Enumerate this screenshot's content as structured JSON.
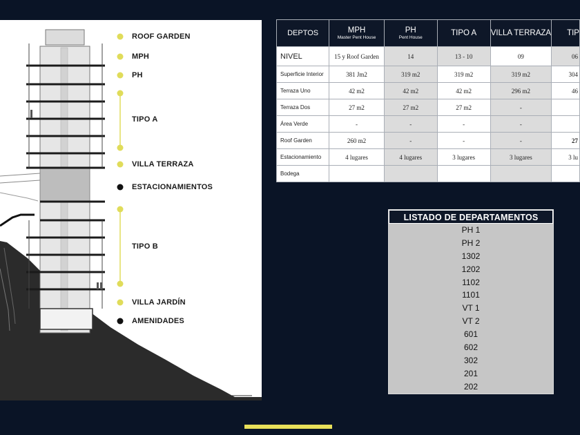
{
  "building_levels": [
    {
      "label": "ROOF GARDEN",
      "marker": "yellow"
    },
    {
      "label": "MPH",
      "marker": "yellow"
    },
    {
      "label": "PH",
      "marker": "yellow"
    },
    {
      "label": "TIPO A",
      "marker": "yellow-range"
    },
    {
      "label": "VILLA TERRAZA",
      "marker": "yellow"
    },
    {
      "label": "ESTACIONAMIENTOS",
      "marker": "black"
    },
    {
      "label": "TIPO B",
      "marker": "yellow-range"
    },
    {
      "label": "VILLA JARDÍN",
      "marker": "yellow"
    },
    {
      "label": "AMENIDADES",
      "marker": "black"
    }
  ],
  "colors": {
    "accent_yellow": "#e0dc5a",
    "background": "#0a1426",
    "header": "#0e1728",
    "marker_black": "#111111"
  },
  "specs_table": {
    "header_first": "DEPTOS",
    "columns": [
      {
        "name": "MPH",
        "sub": "Master Pent House"
      },
      {
        "name": "PH",
        "sub": "Pent House"
      },
      {
        "name": "TIPO A",
        "sub": ""
      },
      {
        "name": "VILLA TERRAZA",
        "sub": ""
      },
      {
        "name": "TIP",
        "sub": ""
      }
    ],
    "rows": [
      {
        "label": "NIVEL",
        "values": [
          "15 y Roof Garden",
          "14",
          "13 - 10",
          "09",
          "06"
        ]
      },
      {
        "label": "Superficie Interior",
        "values": [
          "381 Jm2",
          "319 m2",
          "319 m2",
          "319 m2",
          "304"
        ]
      },
      {
        "label": "Terraza Uno",
        "values": [
          "42 m2",
          "42 m2",
          "42 m2",
          "296 m2",
          "46"
        ]
      },
      {
        "label": "Terraza Dos",
        "values": [
          "27 m2",
          "27 m2",
          "27 m2",
          "-",
          ""
        ]
      },
      {
        "label": "Área Verde",
        "values": [
          "-",
          "-",
          "-",
          "-",
          ""
        ]
      },
      {
        "label": "Roof Garden",
        "values": [
          "260 m2",
          "-",
          "-",
          "-",
          "27"
        ]
      },
      {
        "label": "Estacionamiento",
        "values": [
          "4 lugares",
          "4 lugares",
          "3 lugares",
          "3 lugares",
          "3 lu"
        ]
      },
      {
        "label": "Bodega",
        "values": [
          "",
          "",
          "",
          "",
          ""
        ]
      }
    ]
  },
  "listing": {
    "title": "LISTADO DE DEPARTAMENTOS",
    "items": [
      "PH 1",
      "PH 2",
      "1302",
      "1202",
      "1102",
      "1101",
      "VT 1",
      "VT 2",
      "601",
      "602",
      "302",
      "201",
      "202"
    ]
  }
}
